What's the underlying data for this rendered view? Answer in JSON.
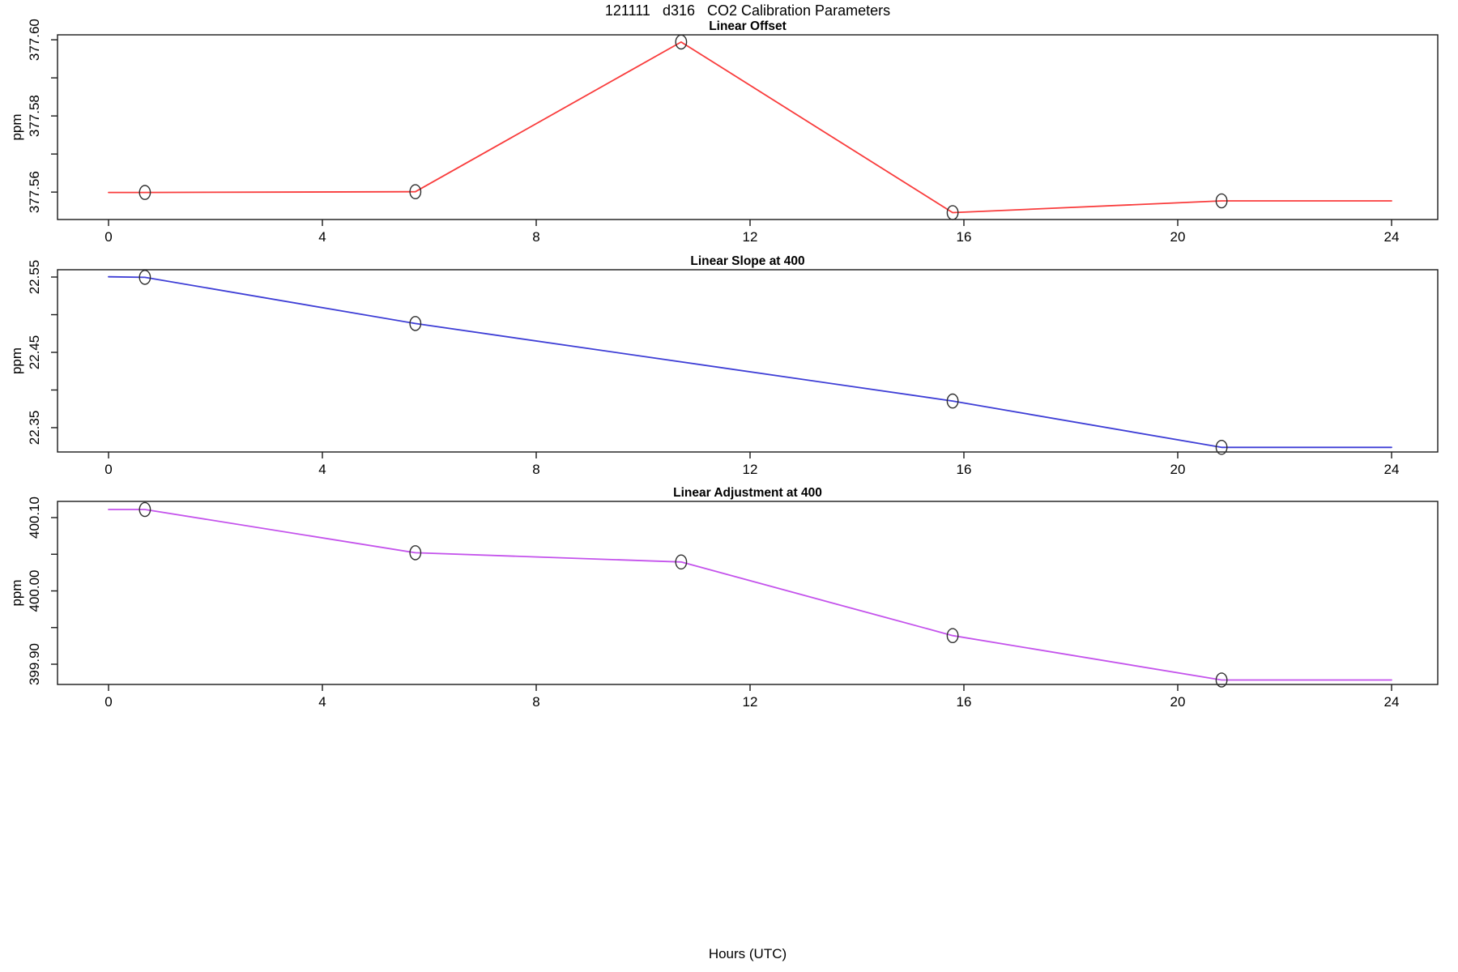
{
  "title": "121111   d316   CO2 Calibration Parameters",
  "xlabel": "Hours (UTC)",
  "colors": {
    "offset_line": "#f93c3c",
    "slope_line": "#3e3ed6",
    "adjustment_line": "#c453ec",
    "marker_stroke": "#2e2e2e",
    "axis": "#1a1a1a",
    "text": "#000000"
  },
  "x_axis": {
    "min": 0,
    "max": 24,
    "ticks": [
      0,
      4,
      8,
      12,
      16,
      20,
      24
    ],
    "tick_labels": [
      "0",
      "4",
      "8",
      "12",
      "16",
      "20",
      "24"
    ]
  },
  "chart_data": [
    {
      "type": "line",
      "title": "Linear Offset",
      "ylabel": "ppm",
      "series_color_key": "offset_line",
      "ylim": [
        377.5528,
        377.6013
      ],
      "yticks": [
        {
          "v": 377.56,
          "label": "377.56"
        },
        {
          "v": 377.58,
          "label": "377.58"
        },
        {
          "v": 377.6,
          "label": "377.60"
        }
      ],
      "yticks_minor": [
        377.57,
        377.59
      ],
      "points": {
        "x": [
          0.68,
          5.74,
          10.71,
          15.79,
          20.82
        ],
        "y": [
          377.5599,
          377.5601,
          377.5994,
          377.5546,
          377.5577
        ]
      },
      "line": {
        "x": [
          0,
          0.68,
          5.74,
          10.71,
          15.79,
          20.82,
          24
        ],
        "y": [
          377.5599,
          377.5599,
          377.5601,
          377.5994,
          377.5546,
          377.5577,
          377.5577
        ]
      }
    },
    {
      "type": "line",
      "title": "Linear Slope at 400",
      "ylabel": "ppm",
      "series_color_key": "slope_line",
      "ylim": [
        22.3177,
        22.5597
      ],
      "yticks": [
        {
          "v": 22.35,
          "label": "22.35"
        },
        {
          "v": 22.45,
          "label": "22.45"
        },
        {
          "v": 22.55,
          "label": "22.55"
        }
      ],
      "yticks_minor": [
        22.4,
        22.5
      ],
      "points": {
        "x": [
          0.68,
          5.74,
          15.79,
          20.82
        ],
        "y": [
          22.5496,
          22.4883,
          22.3853,
          22.3238
        ]
      },
      "line": {
        "x": [
          0,
          0.68,
          5.74,
          15.79,
          20.82,
          24
        ],
        "y": [
          22.5503,
          22.5496,
          22.4883,
          22.3853,
          22.3238,
          22.3238
        ]
      }
    },
    {
      "type": "line",
      "title": "Linear Adjustment at 400",
      "ylabel": "ppm",
      "series_color_key": "adjustment_line",
      "ylim": [
        399.8724,
        400.1221
      ],
      "yticks": [
        {
          "v": 399.9,
          "label": "399.90"
        },
        {
          "v": 400.0,
          "label": "400.00"
        },
        {
          "v": 400.1,
          "label": "400.10"
        }
      ],
      "yticks_minor": [
        399.95,
        400.05
      ],
      "points": {
        "x": [
          0.68,
          5.74,
          10.71,
          15.79,
          20.82
        ],
        "y": [
          400.111,
          400.052,
          400.0395,
          399.939,
          399.8785
        ]
      },
      "line": {
        "x": [
          0,
          0.68,
          5.74,
          10.71,
          15.79,
          20.82,
          24
        ],
        "y": [
          400.111,
          400.111,
          400.052,
          400.0395,
          399.939,
          399.8785,
          399.8785
        ]
      }
    }
  ]
}
